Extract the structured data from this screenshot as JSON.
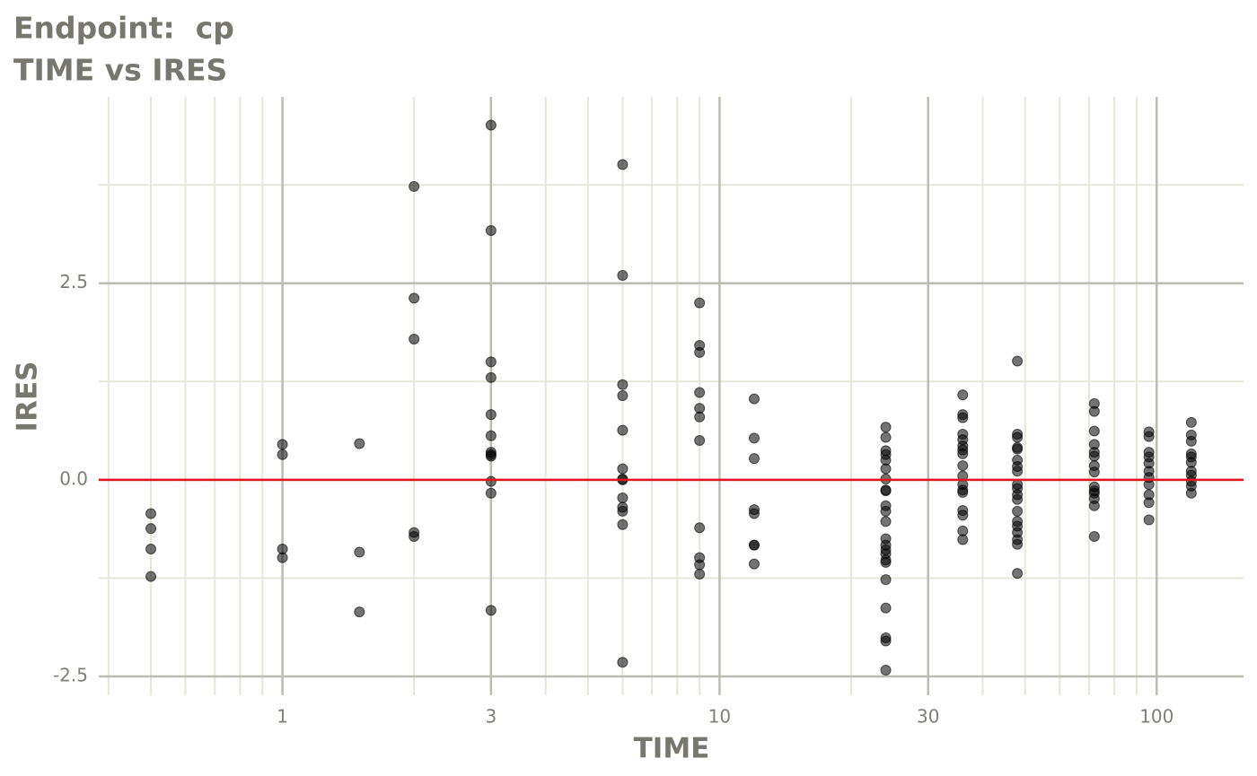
{
  "chart_data": {
    "type": "scatter",
    "title": "Endpoint:  cp",
    "subtitle": "TIME vs IRES",
    "xlabel": "TIME",
    "ylabel": "IRES",
    "xscale": "log",
    "grid": true,
    "xlim": [
      0.38,
      158
    ],
    "ylim": [
      -2.74,
      4.87
    ],
    "xticks": [
      1,
      3,
      10,
      30,
      100
    ],
    "yticks": [
      -2.5,
      {
        "value": 0,
        "label": "0.0"
      },
      2.5
    ],
    "x_minor_grid": [
      0.4,
      0.5,
      0.6,
      0.7,
      0.8,
      0.9,
      2,
      4,
      5,
      6,
      7,
      8,
      9,
      20,
      40,
      50,
      60,
      70,
      80,
      90
    ],
    "y_minor_grid": [
      -1.25,
      1.25,
      3.75
    ],
    "hline": 0,
    "hline_color": "#e8141c",
    "color": "rgba(0,0,0,0.55)",
    "x": [
      0.5,
      0.5,
      0.5,
      0.5,
      1,
      1,
      1,
      1,
      1.5,
      1.5,
      1.5,
      2,
      2,
      2,
      2,
      2,
      3,
      3,
      3,
      3,
      3,
      3,
      3,
      3,
      3,
      3,
      3,
      3,
      6,
      6,
      6,
      6,
      6,
      6,
      6,
      6,
      6,
      6,
      6,
      6,
      6,
      9,
      9,
      9,
      9,
      9,
      9,
      9,
      9,
      9,
      9,
      9,
      12,
      12,
      12,
      12,
      12,
      12,
      12,
      12,
      24,
      24,
      24,
      24,
      24,
      24,
      24,
      24,
      24,
      24,
      24,
      24,
      24,
      24,
      24,
      24,
      24,
      24,
      24,
      24,
      24,
      24,
      24,
      36,
      36,
      36,
      36,
      36,
      36,
      36,
      36,
      36,
      36,
      36,
      36,
      36,
      36,
      36,
      36,
      36,
      48,
      48,
      48,
      48,
      48,
      48,
      48,
      48,
      48,
      48,
      48,
      48,
      48,
      48,
      48,
      48,
      48,
      48,
      48,
      72,
      72,
      72,
      72,
      72,
      72,
      72,
      72,
      72,
      72,
      72,
      72,
      72,
      72,
      96,
      96,
      96,
      96,
      96,
      96,
      96,
      96,
      96,
      96,
      96,
      120,
      120,
      120,
      120,
      120,
      120,
      120,
      120,
      120,
      120,
      120
    ],
    "y": [
      -0.43,
      -0.62,
      -0.88,
      -1.23,
      0.45,
      0.32,
      -0.88,
      -0.99,
      0.46,
      -0.92,
      -1.68,
      3.73,
      2.31,
      1.79,
      -0.67,
      -0.72,
      4.51,
      3.17,
      1.5,
      1.3,
      0.83,
      0.56,
      0.35,
      0.32,
      0.3,
      -0.02,
      -0.17,
      -1.66,
      4.01,
      2.6,
      1.21,
      1.07,
      0.63,
      0.14,
      0.01,
      0,
      -0.23,
      -0.35,
      -0.4,
      -0.57,
      -2.32,
      2.25,
      1.71,
      1.62,
      1.11,
      0.91,
      0.8,
      0.5,
      -0.61,
      -0.99,
      -1.08,
      -1.2,
      1.03,
      0.53,
      0.27,
      -0.38,
      -0.43,
      -0.83,
      -0.83,
      -1.07,
      0.67,
      0.54,
      0.37,
      0.32,
      0.25,
      0.14,
      0.01,
      -0.13,
      -0.14,
      -0.33,
      -0.4,
      -0.53,
      -0.75,
      -0.83,
      -0.89,
      -0.94,
      -1.02,
      -1.05,
      -1.27,
      -1.63,
      -2.01,
      -2.05,
      -2.42,
      1.08,
      0.83,
      0.79,
      0.58,
      0.51,
      0.43,
      0.38,
      0.33,
      0.18,
      0.05,
      -0.06,
      -0.13,
      -0.16,
      -0.39,
      -0.45,
      -0.65,
      -0.76,
      1.51,
      0.58,
      0.54,
      0.41,
      0.39,
      0.25,
      0.17,
      0.11,
      -0.06,
      -0.11,
      -0.19,
      -0.25,
      -0.4,
      -0.53,
      -0.59,
      -0.67,
      -0.76,
      -0.82,
      -1.19,
      0.97,
      0.87,
      0.62,
      0.45,
      0.35,
      0.3,
      0.18,
      0.1,
      -0.09,
      -0.14,
      -0.17,
      -0.24,
      -0.33,
      -0.72,
      0.61,
      0.55,
      0.35,
      0.29,
      0.21,
      0.11,
      0.03,
      -0.06,
      -0.19,
      -0.29,
      -0.51,
      0.73,
      0.57,
      0.49,
      0.33,
      0.29,
      0.22,
      0.11,
      0.06,
      -0.02,
      -0.08,
      -0.17
    ]
  }
}
